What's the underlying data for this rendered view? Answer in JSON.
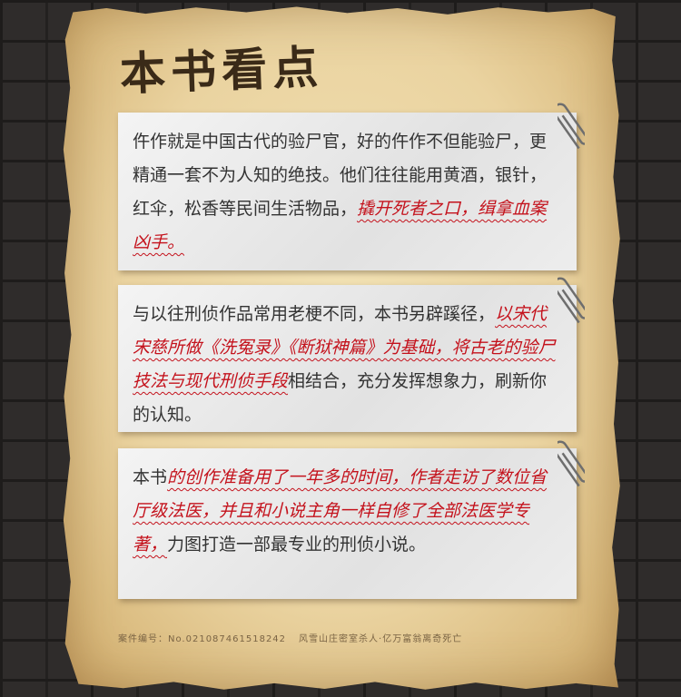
{
  "title": "本书看点",
  "cards": [
    {
      "plain_a": "仵作就是中国古代的验尸官，好的仵作不但能验尸，更精通一套不为人知的绝技。他们往往能用黄酒，银针，红伞，松香等民间生活物品，",
      "highlight_a": "撬开死者之口，缉拿血案凶手。",
      "plain_b": "",
      "highlight_b": "",
      "plain_c": ""
    },
    {
      "plain_a": "与以往刑侦作品常用老梗不同，本书另辟蹊径，",
      "highlight_a": "以宋代宋慈所做《洗冤录》《断狱神篇》为基础，将古老的验尸技法与现代刑侦手段",
      "plain_b": "相结合，充分发挥想象力，刷新你的认知。",
      "highlight_b": "",
      "plain_c": ""
    },
    {
      "plain_a": "本书",
      "highlight_a": "的创作准备用了一年多的时间，作者走访了数位省厅级法医，并且和小说主角一样自修了全部法医学专著，",
      "plain_b": "力图打造一部最专业的刑侦小说。",
      "highlight_b": "",
      "plain_c": ""
    }
  ],
  "footer": {
    "case_label": "案件编号：No.021087461518242",
    "case_title": "风雪山庄密室杀人·亿万富翁离奇死亡"
  },
  "icons": [
    "paperclip-icon"
  ],
  "colors": {
    "highlight": "#c4121c",
    "paper": "#ead3a0",
    "card": "#ececec"
  }
}
